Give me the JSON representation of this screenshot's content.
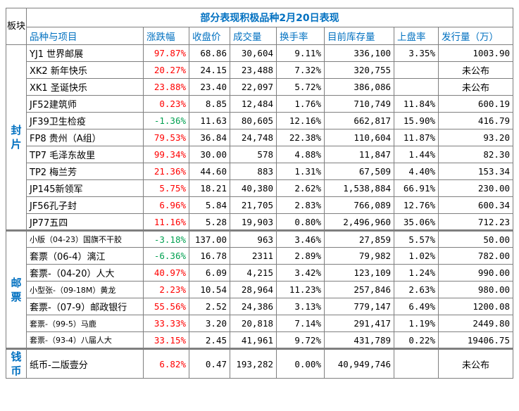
{
  "title": "部分表现积极品种2月20日表现",
  "corner_label": "板块",
  "headers": [
    "品种与项目",
    "涨跌幅",
    "收盘价",
    "成交量",
    "换手率",
    "目前库存量",
    "上盘率",
    "发行量（万）"
  ],
  "sections": [
    {
      "label": "封片",
      "rows": [
        [
          "YJ1 世界邮展",
          "97.87%",
          "68.86",
          "30,604",
          "9.11%",
          "336,100",
          "3.35%",
          "1003.90"
        ],
        [
          "XK2 新年快乐",
          "20.27%",
          "24.15",
          "23,488",
          "7.32%",
          "320,755",
          "",
          "未公布"
        ],
        [
          "XK1 圣诞快乐",
          "23.88%",
          "23.40",
          "22,097",
          "5.72%",
          "386,086",
          "",
          "未公布"
        ],
        [
          "JF52建筑师",
          "0.23%",
          "8.85",
          "12,484",
          "1.76%",
          "710,749",
          "11.84%",
          "600.19"
        ],
        [
          "JF39卫生检疫",
          "-1.36%",
          "11.63",
          "80,605",
          "12.16%",
          "662,817",
          "15.90%",
          "416.79"
        ],
        [
          "FP8 贵州（A组）",
          "79.53%",
          "36.84",
          "24,748",
          "22.38%",
          "110,604",
          "11.87%",
          "93.20"
        ],
        [
          "TP7 毛泽东故里",
          "99.34%",
          "30.00",
          "578",
          "4.88%",
          "11,847",
          "1.44%",
          "82.30"
        ],
        [
          "TP2 梅兰芳",
          "21.36%",
          "44.60",
          "883",
          "1.31%",
          "67,509",
          "4.40%",
          "153.34"
        ],
        [
          "JP145新领军",
          "5.75%",
          "18.21",
          "40,380",
          "2.62%",
          "1,538,884",
          "66.91%",
          "230.00"
        ],
        [
          "JF56孔子封",
          "6.96%",
          "5.84",
          "21,705",
          "2.83%",
          "766,089",
          "12.76%",
          "600.34"
        ],
        [
          "JP77五四",
          "11.16%",
          "5.28",
          "19,903",
          "0.80%",
          "2,496,960",
          "35.06%",
          "712.23"
        ]
      ]
    },
    {
      "label": "邮票",
      "rows": [
        [
          "小版（04-23）国旗不干胶",
          "-3.18%",
          "137.00",
          "963",
          "3.46%",
          "27,859",
          "5.57%",
          "50.00"
        ],
        [
          "套票（06-4）漓江",
          "-6.36%",
          "16.78",
          "2311",
          "2.89%",
          "79,982",
          "1.02%",
          "782.00"
        ],
        [
          "套票-（04-20）人大",
          "40.97%",
          "6.09",
          "4,215",
          "3.42%",
          "123,109",
          "1.24%",
          "990.00"
        ],
        [
          "小型张-（09-18M）黄龙",
          "2.23%",
          "10.54",
          "28,964",
          "11.23%",
          "257,846",
          "2.63%",
          "980.00"
        ],
        [
          "套票-（07-9）邮政银行",
          "55.56%",
          "2.52",
          "24,386",
          "3.13%",
          "779,147",
          "6.49%",
          "1200.08"
        ],
        [
          "套票-（99-5）马鹿",
          "33.33%",
          "3.20",
          "20,818",
          "7.14%",
          "291,417",
          "1.19%",
          "2449.80"
        ],
        [
          "套票-（93-4）八届人大",
          "33.15%",
          "2.45",
          "41,961",
          "9.72%",
          "431,789",
          "0.22%",
          "19406.75"
        ]
      ]
    },
    {
      "label": "钱币",
      "rows": [
        [
          "纸币-二版壹分",
          "6.82%",
          "0.47",
          "193,282",
          "0.00%",
          "40,949,746",
          "",
          "未公布"
        ]
      ]
    }
  ],
  "colors": {
    "header_text": "#0070c0",
    "up": "#ff0000",
    "down": "#00a050",
    "grid": "#7f7f7f"
  }
}
